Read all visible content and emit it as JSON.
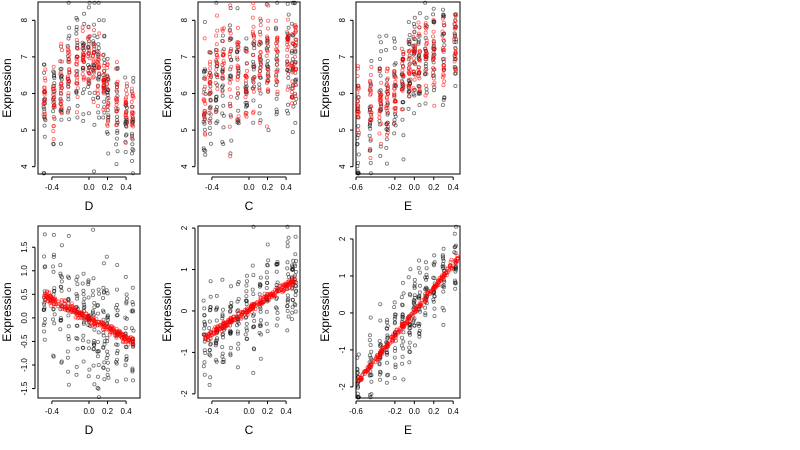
{
  "colors": {
    "observed": "#000000",
    "fitted": "#ff0000",
    "background": "#ffffff"
  },
  "chart_data": [
    {
      "type": "scatter",
      "xlabel": "D",
      "ylabel": "Expression",
      "xlim": [
        -0.55,
        0.55
      ],
      "ylim": [
        3.8,
        8.5
      ],
      "xticks": [
        -0.4,
        0.0,
        0.2,
        0.4
      ],
      "xtick_labels": [
        "-0.4",
        "0.0",
        "0.2",
        "0.4"
      ],
      "yticks": [
        4,
        5,
        6,
        7,
        8
      ],
      "ytick_labels": [
        "4",
        "5",
        "6",
        "7",
        "8"
      ],
      "x_groups": [
        -0.48,
        -0.38,
        -0.3,
        -0.22,
        -0.13,
        -0.06,
        0.0,
        0.05,
        0.1,
        0.16,
        0.2,
        0.3,
        0.4,
        0.47
      ],
      "observed_center": [
        5.8,
        5.9,
        6.2,
        6.5,
        6.8,
        7.0,
        7.0,
        6.9,
        6.8,
        6.5,
        5.8,
        5.6,
        5.4,
        5.3
      ],
      "observed_spread": 0.75,
      "fitted_center": [
        6.1,
        5.8,
        6.1,
        6.4,
        6.7,
        7.0,
        7.1,
        6.9,
        6.7,
        6.4,
        6.0,
        5.8,
        5.6,
        5.4
      ],
      "fitted_spread": 0.45,
      "points_per_group": 18
    },
    {
      "type": "scatter",
      "xlabel": "C",
      "ylabel": "Expression",
      "xlim": [
        -0.55,
        0.55
      ],
      "ylim": [
        3.8,
        8.5
      ],
      "xticks": [
        -0.4,
        0.0,
        0.2,
        0.4
      ],
      "xtick_labels": [
        "-0.4",
        "0.0",
        "0.2",
        "0.4"
      ],
      "yticks": [
        4,
        5,
        6,
        7,
        8
      ],
      "ytick_labels": [
        "4",
        "5",
        "6",
        "7",
        "8"
      ],
      "x_groups": [
        -0.48,
        -0.42,
        -0.35,
        -0.28,
        -0.2,
        -0.12,
        -0.03,
        0.05,
        0.12,
        0.2,
        0.3,
        0.42,
        0.47,
        0.5
      ],
      "observed_center": [
        5.8,
        6.0,
        6.2,
        6.4,
        6.5,
        6.6,
        6.5,
        6.6,
        6.7,
        6.8,
        6.9,
        7.0,
        7.0,
        6.8
      ],
      "observed_spread": 0.85,
      "fitted_center": [
        5.6,
        6.2,
        6.9,
        7.1,
        6.6,
        6.8,
        6.5,
        6.6,
        6.8,
        6.9,
        7.0,
        7.1,
        6.5,
        7.2
      ],
      "fitted_spread": 0.6,
      "points_per_group": 18
    },
    {
      "type": "scatter",
      "xlabel": "E",
      "ylabel": "Expression",
      "xlim": [
        -0.6,
        0.47
      ],
      "ylim": [
        3.8,
        8.5
      ],
      "xticks": [
        -0.6,
        -0.2,
        0.0,
        0.2,
        0.4
      ],
      "xtick_labels": [
        "-0.6",
        "-0.2",
        "0.0",
        "0.2",
        "0.4"
      ],
      "yticks": [
        4,
        5,
        6,
        7,
        8
      ],
      "ytick_labels": [
        "4",
        "5",
        "6",
        "7",
        "8"
      ],
      "x_groups": [
        -0.58,
        -0.45,
        -0.35,
        -0.28,
        -0.2,
        -0.12,
        -0.05,
        0.0,
        0.05,
        0.12,
        0.2,
        0.3,
        0.42
      ],
      "observed_center": [
        4.6,
        5.4,
        5.6,
        5.8,
        6.0,
        6.3,
        6.6,
        6.8,
        6.9,
        7.0,
        7.1,
        7.1,
        7.3
      ],
      "observed_spread": 0.8,
      "fitted_center": [
        5.6,
        5.8,
        5.8,
        6.0,
        6.2,
        6.4,
        6.7,
        6.9,
        7.0,
        7.0,
        7.0,
        7.2,
        7.3
      ],
      "fitted_spread": 0.5,
      "points_per_group": 20
    },
    {
      "type": "scatter",
      "xlabel": "D",
      "ylabel": "Expression",
      "xlim": [
        -0.55,
        0.55
      ],
      "ylim": [
        -1.7,
        1.95
      ],
      "xticks": [
        -0.4,
        0.0,
        0.2,
        0.4
      ],
      "xtick_labels": [
        "-0.4",
        "0.0",
        "0.2",
        "0.4"
      ],
      "yticks": [
        -1.5,
        -1.0,
        -0.5,
        0.0,
        0.5,
        1.0,
        1.5
      ],
      "ytick_labels": [
        "-1.5",
        "-1.0",
        "-0.5",
        "0.0",
        "0.5",
        "1.0",
        "1.5"
      ],
      "x_groups": [
        -0.48,
        -0.38,
        -0.3,
        -0.22,
        -0.13,
        -0.06,
        0.0,
        0.05,
        0.1,
        0.16,
        0.2,
        0.3,
        0.4,
        0.47
      ],
      "observed_center": [
        0.5,
        0.4,
        0.35,
        0.25,
        0.15,
        0.05,
        0.0,
        -0.05,
        -0.1,
        -0.15,
        -0.25,
        -0.3,
        -0.4,
        -0.45
      ],
      "observed_spread": 0.6,
      "fitted_line": [
        [
          -0.48,
          0.47
        ],
        [
          0.48,
          -0.5
        ]
      ],
      "fitted_spread": 0.05,
      "points_per_group": 18
    },
    {
      "type": "scatter",
      "xlabel": "C",
      "ylabel": "Expression",
      "xlim": [
        -0.55,
        0.55
      ],
      "ylim": [
        -2.1,
        2.05
      ],
      "xticks": [
        -0.4,
        0.0,
        0.2,
        0.4
      ],
      "xtick_labels": [
        "-0.4",
        "0.0",
        "0.2",
        "0.4"
      ],
      "yticks": [
        -2,
        -1,
        0,
        1,
        2
      ],
      "ytick_labels": [
        "-2",
        "-1",
        "0",
        "1",
        "2"
      ],
      "x_groups": [
        -0.48,
        -0.42,
        -0.35,
        -0.28,
        -0.2,
        -0.12,
        -0.03,
        0.05,
        0.12,
        0.2,
        0.3,
        0.42,
        0.47,
        0.5
      ],
      "observed_center": [
        -0.7,
        -0.6,
        -0.5,
        -0.4,
        -0.25,
        -0.15,
        0.0,
        0.1,
        0.2,
        0.3,
        0.45,
        0.6,
        0.7,
        0.75
      ],
      "observed_spread": 0.55,
      "fitted_line": [
        [
          -0.48,
          -0.65
        ],
        [
          0.5,
          0.75
        ]
      ],
      "fitted_spread": 0.05,
      "points_per_group": 18
    },
    {
      "type": "scatter",
      "xlabel": "E",
      "ylabel": "Expression",
      "xlim": [
        -0.6,
        0.47
      ],
      "ylim": [
        -2.3,
        2.35
      ],
      "xticks": [
        -0.6,
        -0.2,
        0.0,
        0.2,
        0.4
      ],
      "xtick_labels": [
        "-0.6",
        "-0.2",
        "0.0",
        "0.2",
        "0.4"
      ],
      "yticks": [
        -2,
        -1,
        0,
        1,
        2
      ],
      "ytick_labels": [
        "-2",
        "-1",
        "0",
        "1",
        "2"
      ],
      "x_groups": [
        -0.58,
        -0.45,
        -0.35,
        -0.28,
        -0.2,
        -0.12,
        -0.05,
        0.0,
        0.05,
        0.12,
        0.2,
        0.3,
        0.42
      ],
      "observed_center": [
        -1.9,
        -1.5,
        -1.2,
        -0.9,
        -0.6,
        -0.35,
        -0.1,
        0.05,
        0.2,
        0.45,
        0.7,
        1.0,
        1.4
      ],
      "observed_spread": 0.5,
      "fitted_line": [
        [
          -0.58,
          -1.85
        ],
        [
          0.45,
          1.5
        ]
      ],
      "fitted_spread": 0.05,
      "points_per_group": 20
    }
  ]
}
